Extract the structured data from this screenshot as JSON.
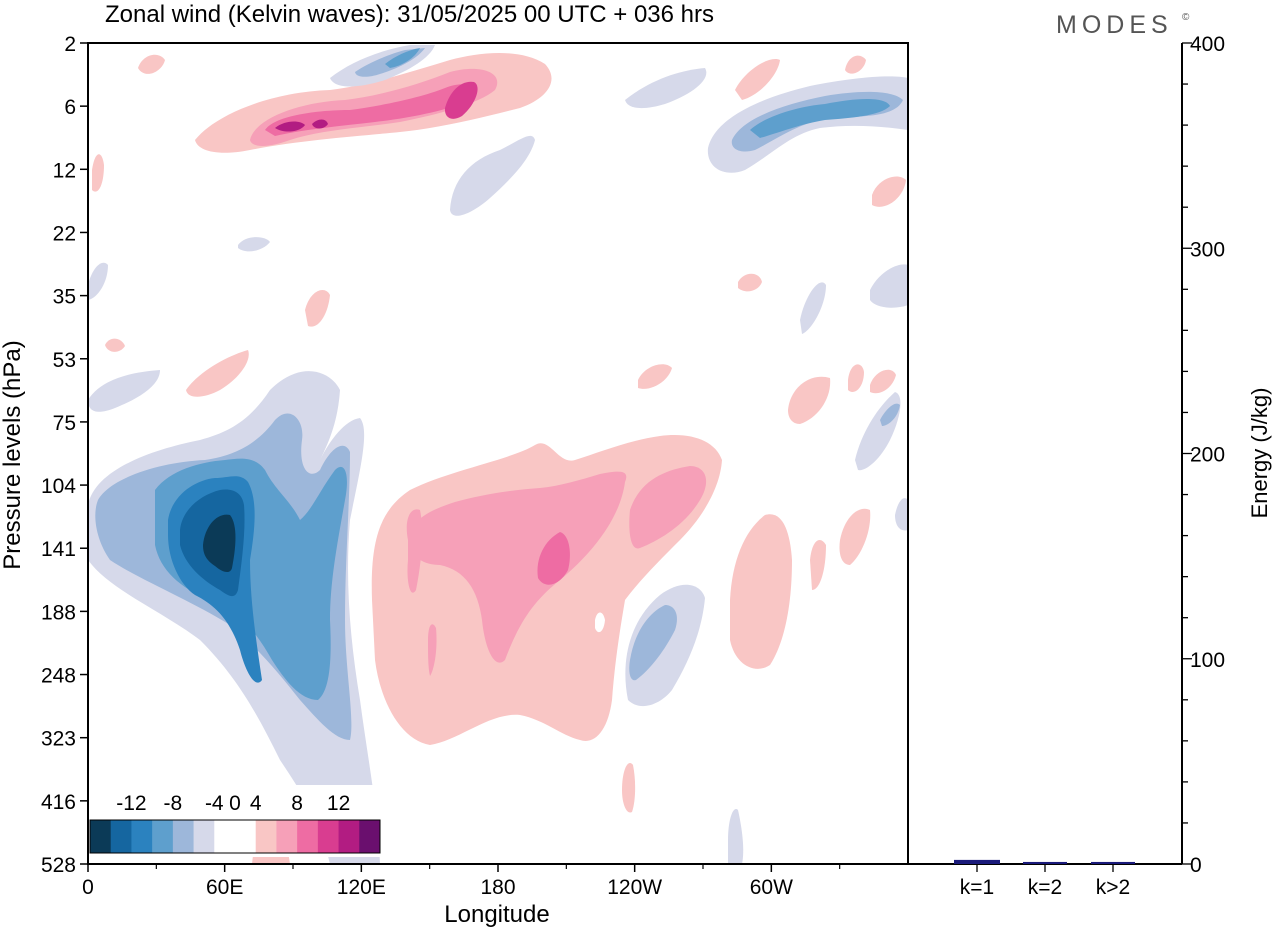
{
  "chart_data": [
    {
      "type": "heatmap",
      "title": "Zonal wind (Kelvin waves):  31/05/2025  00 UTC  + 036 hrs",
      "xlabel": "Longitude",
      "ylabel": "Pressure levels (hPa)",
      "x_ticks": [
        "0",
        "60E",
        "120E",
        "180",
        "120W",
        "60W"
      ],
      "x_tick_degrees": [
        0,
        60,
        120,
        180,
        240,
        300
      ],
      "xlim": [
        0,
        360
      ],
      "y_ticks": [
        "2",
        "6",
        "12",
        "22",
        "35",
        "53",
        "75",
        "104",
        "141",
        "188",
        "248",
        "323",
        "416",
        "528"
      ],
      "colorbar": {
        "labels": [
          "-12",
          "-8",
          "-4",
          "0",
          "4",
          "8",
          "12"
        ],
        "levels": [
          -14,
          -12,
          -10,
          -8,
          -6,
          -4,
          -2,
          2,
          4,
          6,
          8,
          10,
          12,
          14
        ],
        "colors": [
          "#0b3a57",
          "#1566a0",
          "#2b82bf",
          "#5e9fcd",
          "#9db7da",
          "#d6d9ea",
          "#ffffff",
          "#ffffff",
          "#f9c6c5",
          "#f6a0b8",
          "#ee6ca3",
          "#d93d90",
          "#b21c82",
          "#6a0f6e"
        ]
      },
      "regions": [
        {
          "lon_center": 63,
          "level": "141",
          "min_value": -14,
          "sign": "negative"
        },
        {
          "lon_center": 92,
          "level": "188",
          "min_value": -8,
          "sign": "negative"
        },
        {
          "lon_center": 205,
          "level": "141",
          "max_value": 8,
          "sign": "positive"
        },
        {
          "lon_center": 100,
          "level": "6",
          "max_value": 10,
          "sign": "positive"
        },
        {
          "lon_center": 325,
          "level": "6",
          "min_value": -8,
          "sign": "negative"
        },
        {
          "lon_center": 260,
          "level": "188",
          "min_value": -6,
          "sign": "negative"
        },
        {
          "lon_center": 290,
          "level": "188",
          "max_value": 4,
          "sign": "positive"
        }
      ]
    },
    {
      "type": "bar",
      "ylabel": "Energy (J/kg)",
      "categories": [
        "k=1",
        "k=2",
        "k>2"
      ],
      "values": [
        2,
        1,
        1
      ],
      "ylim": [
        0,
        400
      ],
      "y_ticks": [
        "0",
        "100",
        "200",
        "300",
        "400"
      ],
      "bar_color": "#1a1a7a"
    }
  ],
  "logo_text": "MODES",
  "logo_mark": "©"
}
